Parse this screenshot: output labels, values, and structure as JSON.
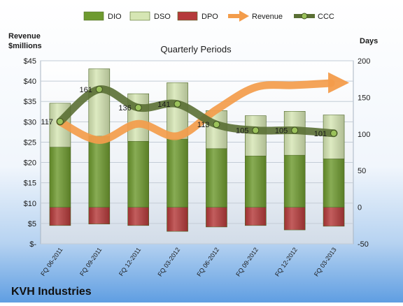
{
  "chart_data": {
    "type": "bar",
    "title": "Quarterly Periods",
    "company": "KVH Industries",
    "left_axis_label": [
      "Revenue",
      "$millions"
    ],
    "right_axis_label": "Days",
    "categories": [
      "FQ 06-2011",
      "FQ 09-2011",
      "FQ 12-2011",
      "FQ 03-2012",
      "FQ 06-2012",
      "FQ 09-2012",
      "FQ 12-2012",
      "FQ 03-2013"
    ],
    "y_left": {
      "min": 0,
      "max": 45,
      "step": 5,
      "tick_labels": [
        "$-",
        "$5",
        "$10",
        "$15",
        "$20",
        "$25",
        "$30",
        "$35",
        "$40",
        "$45"
      ]
    },
    "y_right": {
      "min": -50,
      "max": 200,
      "step": 50,
      "tick_labels": [
        "-50",
        "0",
        "50",
        "100",
        "150",
        "200"
      ]
    },
    "legend": {
      "placement": "top",
      "items": [
        "DIO",
        "DSO",
        "DPO",
        "Revenue",
        "CCC"
      ]
    },
    "series": [
      {
        "name": "DIO",
        "kind": "bar",
        "axis": "right",
        "color": "#6e9a2f",
        "values": [
          82,
          97,
          90,
          93,
          80,
          70,
          71,
          66
        ]
      },
      {
        "name": "DSO",
        "kind": "bar",
        "axis": "right",
        "color": "#d6e6b4",
        "values": [
          60,
          92,
          65,
          77,
          52,
          55,
          60,
          60
        ]
      },
      {
        "name": "DPO",
        "kind": "bar",
        "axis": "right",
        "color": "#b53a3a",
        "values": [
          -25,
          -23,
          -25,
          -33,
          -27,
          -25,
          -31,
          -26
        ]
      },
      {
        "name": "Revenue",
        "kind": "line",
        "axis": "left",
        "color": "#f39c4b",
        "values": [
          30,
          25.5,
          29.5,
          26.5,
          33,
          38.5,
          39,
          39.5
        ]
      },
      {
        "name": "CCC",
        "kind": "line",
        "axis": "right",
        "color": "#5a6f34",
        "values": [
          117,
          161,
          136,
          141,
          113,
          105,
          105,
          101
        ],
        "labels": [
          "117",
          "161",
          "136",
          "141",
          "113",
          "105",
          "105",
          "101"
        ]
      }
    ]
  }
}
